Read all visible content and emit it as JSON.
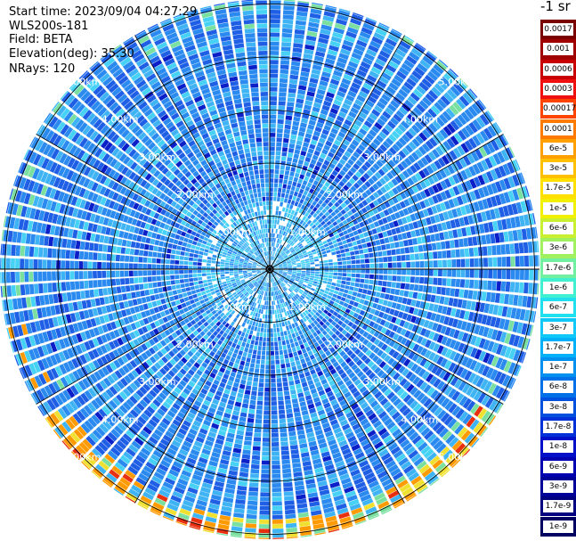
{
  "header": {
    "start_time": "Start time: 2023/09/04 04:27:29",
    "instrument": "WLS200s-181",
    "field": "Field: BETA",
    "elevation": "Elevation(deg): 35.30",
    "nrays": "NRays: 120"
  },
  "chart_data": {
    "type": "heatmap",
    "projection": "polar-ppi",
    "rings": [
      "1.00km",
      "2.00km",
      "3.00km",
      "4.00km",
      "5.00km"
    ],
    "ring_label_diagonals": [
      "top-left",
      "top-right",
      "bottom-left",
      "bottom-right"
    ],
    "max_range_km": 5.5,
    "nrays": 120,
    "colorbar": {
      "units": "-1 sr",
      "levels": [
        "0.0017",
        "0.001",
        "0.0006",
        "0.0003",
        "0.00017",
        "0.0001",
        "6e-5",
        "3e-5",
        "1.7e-5",
        "1e-5",
        "6e-6",
        "3e-6",
        "1.7e-6",
        "1e-6",
        "6e-7",
        "3e-7",
        "1.7e-7",
        "1e-7",
        "6e-8",
        "3e-8",
        "1.7e-8",
        "1e-8",
        "6e-9",
        "3e-9",
        "1.7e-9",
        "1e-9"
      ],
      "colors": [
        "#7a0000",
        "#a00000",
        "#c80000",
        "#f01010",
        "#ff4400",
        "#ff7a00",
        "#ffa000",
        "#ffc000",
        "#ffe000",
        "#f0f000",
        "#c8f030",
        "#a0f060",
        "#70f0a0",
        "#40f0d0",
        "#20e0f0",
        "#10c8f8",
        "#00b0f8",
        "#0090f0",
        "#0070e8",
        "#0050e0",
        "#0030d8",
        "#0010c8",
        "#0000b0",
        "#000098",
        "#000080",
        "#000060"
      ]
    }
  }
}
